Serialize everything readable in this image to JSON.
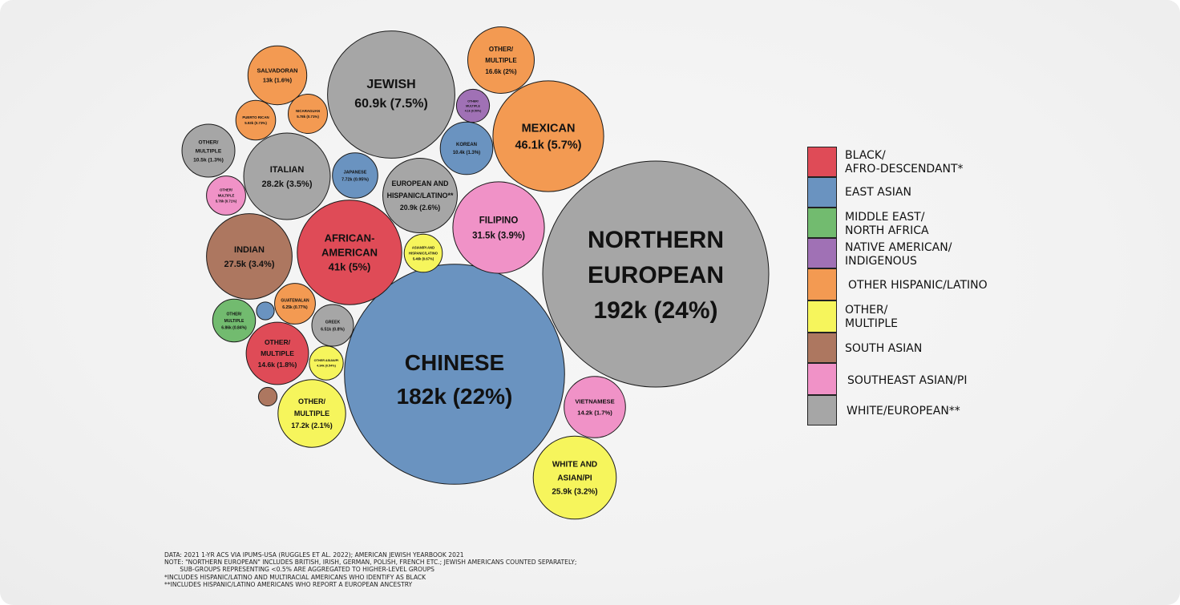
{
  "colors": {
    "black": "#df4b57",
    "east_asian": "#6a93c0",
    "mena": "#72bb6f",
    "native": "#a071b5",
    "hispanic": "#f39a52",
    "multiple": "#f6f55c",
    "south_asian": "#ad7760",
    "southeast_asian": "#f092c7",
    "white": "#a6a6a6"
  },
  "legend": [
    {
      "key": "black",
      "label": "BLACK/\nAFRO-DESCENDANT*"
    },
    {
      "key": "east_asian",
      "label": "EAST ASIAN"
    },
    {
      "key": "mena",
      "label": "MIDDLE EAST/\nNORTH AFRICA"
    },
    {
      "key": "native",
      "label": "NATIVE AMERICAN/\nINDIGENOUS"
    },
    {
      "key": "hispanic",
      "label": "OTHER HISPANIC/LATINO"
    },
    {
      "key": "multiple",
      "label": "OTHER/\nMULTIPLE"
    },
    {
      "key": "south_asian",
      "label": "SOUTH ASIAN"
    },
    {
      "key": "southeast_asian",
      "label": "SOUTHEAST ASIAN/PI"
    },
    {
      "key": "white",
      "label": "WHITE/EUROPEAN**"
    }
  ],
  "notes": [
    "DATA: 2021 1-YR ACS VIA IPUMS-USA (RUGGLES ET AL. 2022); AMERICAN JEWISH YEARBOOK 2021",
    "NOTE: \"NORTHERN EUROPEAN\" INCLUDES BRITISH, IRISH, GERMAN, POLISH, FRENCH ETC.; JEWISH AMERICANS COUNTED SEPARATELY;",
    "        SUB-GROUPS REPRESENTING <0.5% ARE AGGREGATED TO HIGHER-LEVEL GROUPS",
    "*INCLUDES HISPANIC/LATINO AND MULTIRACIAL AMERICANS WHO IDENTIFY AS BLACK",
    "**INCLUDES HISPANIC/LATINO AMERICANS WHO REPORT A EUROPEAN ANCESTRY"
  ],
  "chart_data": {
    "type": "bubble",
    "value_unit": "people",
    "share_unit": "% of total",
    "legend_position": "right",
    "bubbles": [
      {
        "name": "NORTHERN EUROPEAN",
        "lines": [
          "NORTHERN",
          "EUROPEAN",
          "192k (24%)"
        ],
        "value": 192000,
        "share": 24,
        "group": "white"
      },
      {
        "name": "CHINESE",
        "lines": [
          "CHINESE",
          "182k (22%)"
        ],
        "value": 182000,
        "share": 22,
        "group": "east_asian"
      },
      {
        "name": "JEWISH",
        "lines": [
          "JEWISH",
          "60.9k (7.5%)"
        ],
        "value": 60900,
        "share": 7.5,
        "group": "white"
      },
      {
        "name": "MEXICAN",
        "lines": [
          "MEXICAN",
          "46.1k (5.7%)"
        ],
        "value": 46100,
        "share": 5.7,
        "group": "hispanic"
      },
      {
        "name": "AFRICAN-AMERICAN",
        "lines": [
          "AFRICAN-",
          "AMERICAN",
          "41k (5%)"
        ],
        "value": 41000,
        "share": 5,
        "group": "black"
      },
      {
        "name": "FILIPINO",
        "lines": [
          "FILIPINO",
          "31.5k (3.9%)"
        ],
        "value": 31500,
        "share": 3.9,
        "group": "southeast_asian"
      },
      {
        "name": "ITALIAN",
        "lines": [
          "ITALIAN",
          "28.2k (3.5%)"
        ],
        "value": 28200,
        "share": 3.5,
        "group": "white"
      },
      {
        "name": "INDIAN",
        "lines": [
          "INDIAN",
          "27.5k (3.4%)"
        ],
        "value": 27500,
        "share": 3.4,
        "group": "south_asian"
      },
      {
        "name": "WHITE AND ASIAN/PI",
        "lines": [
          "WHITE AND",
          "ASIAN/PI",
          "25.9k (3.2%)"
        ],
        "value": 25900,
        "share": 3.2,
        "group": "multiple"
      },
      {
        "name": "EUROPEAN AND HISPANIC/LATINO**",
        "lines": [
          "EUROPEAN AND",
          "HISPANIC/LATINO**",
          "20.9k (2.6%)"
        ],
        "value": 20900,
        "share": 2.6,
        "group": "white"
      },
      {
        "name": "OTHER/MULTIPLE (multiple)",
        "lines": [
          "OTHER/",
          "MULTIPLE",
          "17.2k (2.1%)"
        ],
        "value": 17200,
        "share": 2.1,
        "group": "multiple"
      },
      {
        "name": "OTHER/MULTIPLE (hispanic)",
        "lines": [
          "OTHER/",
          "MULTIPLE",
          "16.6k (2%)"
        ],
        "value": 16600,
        "share": 2,
        "group": "hispanic"
      },
      {
        "name": "OTHER/MULTIPLE (black)",
        "lines": [
          "OTHER/",
          "MULTIPLE",
          "14.6k (1.8%)"
        ],
        "value": 14600,
        "share": 1.8,
        "group": "black"
      },
      {
        "name": "VIETNAMESE",
        "lines": [
          "VIETNAMESE",
          "14.2k (1.7%)"
        ],
        "value": 14200,
        "share": 1.7,
        "group": "southeast_asian"
      },
      {
        "name": "SALVADORAN",
        "lines": [
          "SALVADORAN",
          "13k (1.6%)"
        ],
        "value": 13000,
        "share": 1.6,
        "group": "hispanic"
      },
      {
        "name": "OTHER/MULTIPLE (white)",
        "lines": [
          "OTHER/",
          "MULTIPLE",
          "10.5k (1.3%)"
        ],
        "value": 10500,
        "share": 1.3,
        "group": "white"
      },
      {
        "name": "KOREAN",
        "lines": [
          "KOREAN",
          "10.4k (1.3%)"
        ],
        "value": 10400,
        "share": 1.3,
        "group": "east_asian"
      },
      {
        "name": "JAPANESE",
        "lines": [
          "JAPANESE",
          "7.72k (0.95%)"
        ],
        "value": 7720,
        "share": 0.95,
        "group": "east_asian"
      },
      {
        "name": "OTHER/MULTIPLE (mena)",
        "lines": [
          "OTHER/",
          "MULTIPLE",
          "6.86k (0.84%)"
        ],
        "value": 6860,
        "share": 0.84,
        "group": "mena"
      },
      {
        "name": "GREEK",
        "lines": [
          "GREEK",
          "6.51k (0.8%)"
        ],
        "value": 6510,
        "share": 0.8,
        "group": "white"
      },
      {
        "name": "GUATEMALAN",
        "lines": [
          "GUATEMALAN",
          "6.25k (0.77%)"
        ],
        "value": 6250,
        "share": 0.77,
        "group": "hispanic"
      },
      {
        "name": "PUERTO RICAN",
        "lines": [
          "PUERTO RICAN",
          "5.93k (0.73%)"
        ],
        "value": 5930,
        "share": 0.73,
        "group": "hispanic"
      },
      {
        "name": "NICARAGUAN",
        "lines": [
          "NICARAGUAN",
          "5.78k (0.71%)"
        ],
        "value": 5780,
        "share": 0.71,
        "group": "hispanic"
      },
      {
        "name": "OTHER/MULTIPLE (southeast asian)",
        "lines": [
          "OTHER/",
          "MULTIPLE",
          "5.76k (0.71%)"
        ],
        "value": 5760,
        "share": 0.71,
        "group": "southeast_asian"
      },
      {
        "name": "ASIAN/PI AND HISPANIC/LATINO",
        "lines": [
          "ASIAN/PI AND",
          "HISPANIC/LATINO",
          "5.46k (0.67%)"
        ],
        "value": 5460,
        "share": 0.67,
        "group": "multiple"
      },
      {
        "name": "OTHER/MULTIPLE (native)",
        "lines": [
          "OTHER/",
          "MULTIPLE",
          "4.1k (0.50%)"
        ],
        "value": 4100,
        "share": 0.5,
        "group": "native"
      },
      {
        "name": "OTHER ASIAN/PI",
        "lines": [
          "OTHER ASIAN/PI",
          "4.34k (0.54%)"
        ],
        "value": 4340,
        "share": 0.54,
        "group": "multiple"
      },
      {
        "name": "unlabeled (east asian)",
        "lines": [],
        "value": 1200,
        "share": 0.15,
        "group": "east_asian"
      },
      {
        "name": "unlabeled (south asian)",
        "lines": [],
        "value": 1300,
        "share": 0.16,
        "group": "south_asian"
      }
    ]
  }
}
